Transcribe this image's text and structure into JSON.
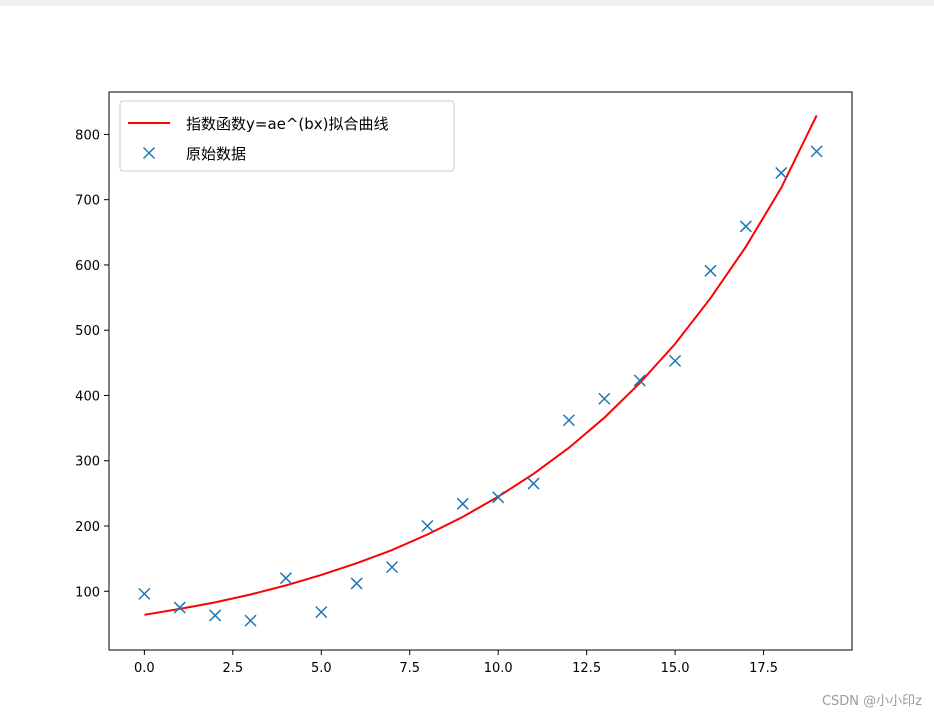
{
  "chart_data": {
    "type": "line",
    "title": "",
    "xlabel": "",
    "ylabel": "",
    "xlim": [
      -1,
      20
    ],
    "ylim": [
      10,
      865
    ],
    "grid": false,
    "legend_position": "top-left",
    "x_ticks": [
      0,
      2.5,
      5,
      7.5,
      10,
      12.5,
      15,
      17.5
    ],
    "x_tick_labels": [
      "0.0",
      "2.5",
      "5.0",
      "7.5",
      "10.0",
      "12.5",
      "15.0",
      "17.5"
    ],
    "y_ticks": [
      100,
      200,
      300,
      400,
      500,
      600,
      700,
      800
    ],
    "y_tick_labels": [
      "100",
      "200",
      "300",
      "400",
      "500",
      "600",
      "700",
      "800"
    ],
    "series": [
      {
        "name": "指数函数y=ae^(bx)拟合曲线",
        "kind": "line",
        "color": "#ff0000",
        "x": [
          0,
          1,
          2,
          3,
          4,
          5,
          6,
          7,
          8,
          9,
          10,
          11,
          12,
          13,
          14,
          15,
          16,
          17,
          18,
          19
        ],
        "y": [
          64,
          73,
          83,
          95,
          109,
          125,
          143,
          163,
          187,
          214,
          245,
          280,
          320,
          366,
          419,
          479,
          549,
          628,
          718,
          829
        ]
      },
      {
        "name": "原始数据",
        "kind": "scatter",
        "marker": "x",
        "color": "#1f77b4",
        "x": [
          0,
          1,
          2,
          3,
          4,
          5,
          6,
          7,
          8,
          9,
          10,
          11,
          12,
          13,
          14,
          15,
          16,
          17,
          18,
          19
        ],
        "y": [
          96,
          75,
          63,
          55,
          120,
          68,
          112,
          137,
          200,
          234,
          244,
          265,
          362,
          395,
          423,
          453,
          591,
          659,
          741,
          774
        ]
      }
    ]
  },
  "watermark": "CSDN @小小印z"
}
